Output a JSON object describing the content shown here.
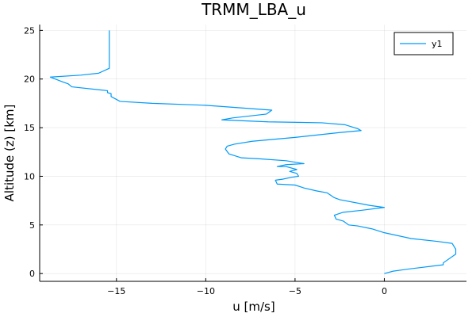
{
  "chart_data": {
    "type": "line",
    "title": "TRMM_LBA_u",
    "xlabel": "u [m/s]",
    "ylabel": "Altitude (z) [km]",
    "xlim": [
      -19.3,
      4.6
    ],
    "ylim": [
      -0.8,
      25.6
    ],
    "x_ticks": [
      -15,
      -10,
      -5,
      0
    ],
    "x_tick_labels": [
      "−15",
      "−10",
      "−5",
      "0"
    ],
    "y_ticks": [
      0,
      5,
      10,
      15,
      20,
      25
    ],
    "y_tick_labels": [
      "0",
      "5",
      "10",
      "15",
      "20",
      "25"
    ],
    "grid": true,
    "legend_position": "top-right",
    "series": [
      {
        "name": "y1",
        "color": "#009af9",
        "points": [
          [
            0.0,
            0.0
          ],
          [
            0.5,
            0.25
          ],
          [
            1.5,
            0.5
          ],
          [
            3.3,
            0.9
          ],
          [
            3.3,
            1.1
          ],
          [
            4.0,
            2.0
          ],
          [
            4.0,
            2.5
          ],
          [
            3.8,
            3.1
          ],
          [
            3.0,
            3.3
          ],
          [
            1.5,
            3.6
          ],
          [
            0.0,
            4.2
          ],
          [
            -0.7,
            4.6
          ],
          [
            -1.5,
            4.9
          ],
          [
            -2.0,
            5.0
          ],
          [
            -2.3,
            5.4
          ],
          [
            -2.7,
            5.6
          ],
          [
            -2.8,
            6.0
          ],
          [
            -2.3,
            6.3
          ],
          [
            -1.3,
            6.5
          ],
          [
            0.0,
            6.8
          ],
          [
            -0.8,
            7.0
          ],
          [
            -2.5,
            7.6
          ],
          [
            -2.8,
            7.8
          ],
          [
            -3.2,
            8.3
          ],
          [
            -3.8,
            8.5
          ],
          [
            -4.5,
            8.8
          ],
          [
            -5.0,
            9.1
          ],
          [
            -6.0,
            9.2
          ],
          [
            -6.1,
            9.6
          ],
          [
            -5.7,
            9.7
          ],
          [
            -5.2,
            9.9
          ],
          [
            -4.8,
            10.0
          ],
          [
            -4.9,
            10.3
          ],
          [
            -5.3,
            10.5
          ],
          [
            -4.9,
            10.7
          ],
          [
            -5.5,
            11.0
          ],
          [
            -6.0,
            11.0
          ],
          [
            -5.5,
            11.2
          ],
          [
            -4.5,
            11.3
          ],
          [
            -5.5,
            11.6
          ],
          [
            -7.0,
            11.8
          ],
          [
            -8.0,
            11.9
          ],
          [
            -8.7,
            12.3
          ],
          [
            -8.9,
            12.8
          ],
          [
            -8.8,
            13.1
          ],
          [
            -8.4,
            13.3
          ],
          [
            -7.4,
            13.6
          ],
          [
            -5.0,
            14.0
          ],
          [
            -2.5,
            14.5
          ],
          [
            -1.3,
            14.7
          ],
          [
            -1.5,
            14.9
          ],
          [
            -2.2,
            15.3
          ],
          [
            -3.5,
            15.5
          ],
          [
            -6.5,
            15.6
          ],
          [
            -9.1,
            15.8
          ],
          [
            -8.5,
            16.0
          ],
          [
            -6.6,
            16.4
          ],
          [
            -6.3,
            16.8
          ],
          [
            -10.0,
            17.3
          ],
          [
            -13.0,
            17.5
          ],
          [
            -14.8,
            17.7
          ],
          [
            -15.3,
            18.2
          ],
          [
            -15.3,
            18.5
          ],
          [
            -15.5,
            18.6
          ],
          [
            -15.5,
            18.8
          ],
          [
            -17.5,
            19.2
          ],
          [
            -17.7,
            19.5
          ],
          [
            -18.0,
            19.7
          ],
          [
            -18.7,
            20.2
          ],
          [
            -17.0,
            20.4
          ],
          [
            -16.0,
            20.6
          ],
          [
            -15.4,
            21.1
          ],
          [
            -15.4,
            21.3
          ],
          [
            -15.4,
            25.0
          ]
        ]
      }
    ]
  }
}
